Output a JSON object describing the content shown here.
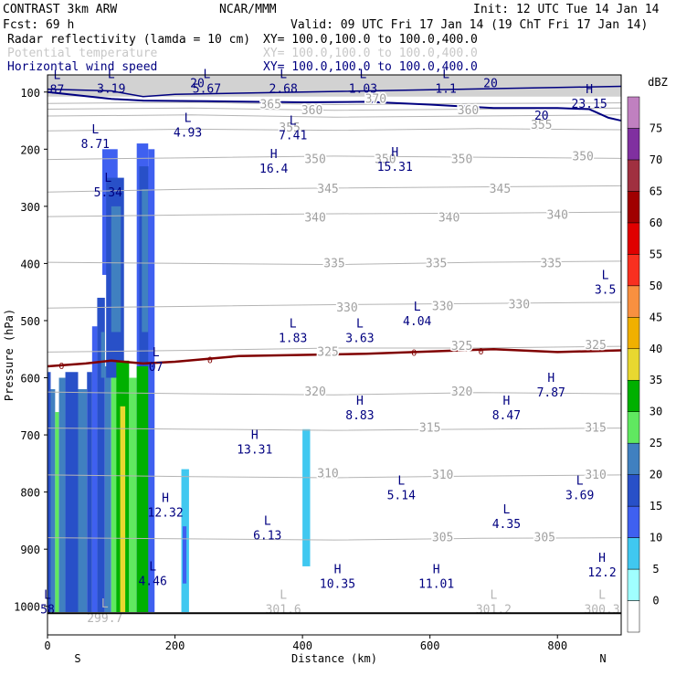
{
  "header": {
    "model": "CONTRAST  3km ARW",
    "org": "NCAR/MMM",
    "init": "Init: 12 UTC Tue 14 Jan 14",
    "fcst": "Fcst:   69 h",
    "valid": "Valid: 09 UTC Fri 17 Jan 14 (19 ChT Fri 17 Jan 14)",
    "fields": [
      {
        "name": "Radar reflectivity (lamda = 10 cm)",
        "xy": "XY= 100.0,100.0 to 100.0,400.0",
        "color": "#000000"
      },
      {
        "name": "Potential temperature",
        "xy": "XY= 100.0,100.0 to 100.0,400.0",
        "color": "#c8c8c8"
      },
      {
        "name": "Horizontal wind speed",
        "xy": "XY= 100.0,100.0 to 100.0,400.0",
        "color": "#000080"
      }
    ]
  },
  "chart_data": {
    "type": "cross-section",
    "xlabel": "Distance (km)",
    "ylabel": "Pressure (hPa)",
    "xlim": [
      0,
      900
    ],
    "ylim": [
      1050,
      70
    ],
    "x_ticks": [
      0,
      200,
      400,
      600,
      800
    ],
    "y_ticks": [
      100,
      200,
      300,
      400,
      500,
      600,
      700,
      800,
      900,
      1000
    ],
    "x_end_labels": {
      "left": "S",
      "right": "N"
    },
    "colorbar": {
      "unit": "dBZ",
      "levels": [
        0,
        5,
        10,
        15,
        20,
        25,
        30,
        35,
        40,
        45,
        50,
        55,
        60,
        65,
        70,
        75
      ],
      "colors": [
        "#ffffff",
        "#a0ffff",
        "#40c8f0",
        "#3f60f0",
        "#2850c8",
        "#4080c0",
        "#60e860",
        "#00b000",
        "#e8d830",
        "#f0b000",
        "#f89040",
        "#f83020",
        "#e00000",
        "#a00000",
        "#a03040",
        "#8030a0",
        "#c080c0"
      ]
    },
    "theta_lines": [
      {
        "value": 370,
        "p": [
          120,
          118,
          122,
          120,
          119
        ]
      },
      {
        "value": 365,
        "p": [
          130,
          128,
          132,
          130,
          128
        ]
      },
      {
        "value": 360,
        "p": [
          142,
          140,
          144,
          142,
          140
        ]
      },
      {
        "value": 355,
        "p": [
          168,
          165,
          167,
          164,
          166
        ]
      },
      {
        "value": 350,
        "p": [
          218,
          215,
          212,
          214,
          216
        ]
      },
      {
        "value": 345,
        "p": [
          275,
          270,
          268,
          266,
          264
        ]
      },
      {
        "value": 340,
        "p": [
          318,
          315,
          313,
          312,
          310
        ]
      },
      {
        "value": 335,
        "p": [
          398,
          400,
          402,
          398,
          396
        ]
      },
      {
        "value": 330,
        "p": [
          478,
          475,
          472,
          470,
          468
        ]
      },
      {
        "value": 325,
        "p": [
          555,
          552,
          548,
          548,
          545
        ]
      },
      {
        "value": 320,
        "p": [
          625,
          628,
          630,
          626,
          628
        ]
      },
      {
        "value": 315,
        "p": [
          688,
          690,
          692,
          690,
          688
        ]
      },
      {
        "value": 310,
        "p": [
          770,
          773,
          775,
          772,
          770
        ]
      },
      {
        "value": 305,
        "p": [
          880,
          882,
          884,
          881,
          880
        ]
      }
    ],
    "theta_labels": [
      {
        "text": "370",
        "x": 515,
        "p": 112
      },
      {
        "text": "365",
        "x": 350,
        "p": 122
      },
      {
        "text": "360",
        "x": 415,
        "p": 132
      },
      {
        "text": "360",
        "x": 660,
        "p": 132
      },
      {
        "text": "355",
        "x": 380,
        "p": 163
      },
      {
        "text": "355",
        "x": 775,
        "p": 158
      },
      {
        "text": "350",
        "x": 420,
        "p": 218
      },
      {
        "text": "350",
        "x": 530,
        "p": 218
      },
      {
        "text": "350",
        "x": 650,
        "p": 218
      },
      {
        "text": "350",
        "x": 840,
        "p": 213
      },
      {
        "text": "345",
        "x": 440,
        "p": 270
      },
      {
        "text": "345",
        "x": 710,
        "p": 270
      },
      {
        "text": "340",
        "x": 420,
        "p": 320
      },
      {
        "text": "340",
        "x": 630,
        "p": 320
      },
      {
        "text": "340",
        "x": 800,
        "p": 315
      },
      {
        "text": "335",
        "x": 450,
        "p": 400
      },
      {
        "text": "335",
        "x": 610,
        "p": 400
      },
      {
        "text": "335",
        "x": 790,
        "p": 400
      },
      {
        "text": "330",
        "x": 470,
        "p": 478
      },
      {
        "text": "330",
        "x": 620,
        "p": 475
      },
      {
        "text": "330",
        "x": 740,
        "p": 472
      },
      {
        "text": "325",
        "x": 440,
        "p": 555
      },
      {
        "text": "325",
        "x": 650,
        "p": 545
      },
      {
        "text": "325",
        "x": 860,
        "p": 543
      },
      {
        "text": "320",
        "x": 420,
        "p": 625
      },
      {
        "text": "320",
        "x": 650,
        "p": 625
      },
      {
        "text": "315",
        "x": 600,
        "p": 688
      },
      {
        "text": "315",
        "x": 860,
        "p": 688
      },
      {
        "text": "310",
        "x": 440,
        "p": 768
      },
      {
        "text": "310",
        "x": 620,
        "p": 770
      },
      {
        "text": "310",
        "x": 860,
        "p": 770
      },
      {
        "text": "305",
        "x": 620,
        "p": 880
      },
      {
        "text": "305",
        "x": 780,
        "p": 880
      }
    ],
    "wind_20_contour": {
      "x": [
        0,
        100,
        150,
        250,
        400,
        500,
        600,
        700,
        800,
        850,
        880,
        900
      ],
      "p": [
        100,
        112,
        115,
        116,
        118,
        117,
        122,
        128,
        128,
        130,
        145,
        150
      ]
    },
    "wind_20_labels": [
      {
        "text": "20",
        "x": 235,
        "p": 85
      },
      {
        "text": "20",
        "x": 695,
        "p": 85
      },
      {
        "text": "20",
        "x": 775,
        "p": 142
      }
    ],
    "wind_10_contour": {
      "x": [
        0,
        100,
        150,
        200,
        400,
        600,
        700,
        800,
        900
      ],
      "p": [
        95,
        98,
        108,
        104,
        100,
        96,
        94,
        92,
        90
      ]
    },
    "zero_wind_line": {
      "x": [
        0,
        60,
        100,
        150,
        200,
        300,
        500,
        700,
        800,
        900
      ],
      "p": [
        580,
        575,
        570,
        575,
        572,
        562,
        558,
        550,
        555,
        552
      ],
      "marks": [
        {
          "text": "0",
          "x": 22,
          "p": 578
        },
        {
          "text": "0",
          "x": 255,
          "p": 568
        },
        {
          "text": "0",
          "x": 575,
          "p": 555
        },
        {
          "text": "0",
          "x": 680,
          "p": 553
        }
      ]
    },
    "wind_extrema": [
      {
        "type": "L",
        "value": "87",
        "x": 15,
        "p": 90
      },
      {
        "type": "L",
        "value": "3.19",
        "x": 100,
        "p": 88
      },
      {
        "type": "L",
        "value": "5.67",
        "x": 250,
        "p": 88
      },
      {
        "type": "L",
        "value": "2.68",
        "x": 370,
        "p": 88
      },
      {
        "type": "L",
        "value": "1.03",
        "x": 495,
        "p": 88
      },
      {
        "type": "L",
        "value": "1.1",
        "x": 625,
        "p": 88
      },
      {
        "type": "H",
        "value": "23.15",
        "x": 850,
        "p": 115
      },
      {
        "type": "L",
        "value": "4.93",
        "x": 220,
        "p": 165
      },
      {
        "type": "L",
        "value": "7.41",
        "x": 385,
        "p": 170
      },
      {
        "type": "L",
        "value": "8.71",
        "x": 75,
        "p": 185
      },
      {
        "type": "H",
        "value": "16.4",
        "x": 355,
        "p": 228
      },
      {
        "type": "H",
        "value": "15.31",
        "x": 545,
        "p": 225
      },
      {
        "type": "L",
        "value": "5.34",
        "x": 95,
        "p": 270
      },
      {
        "type": "L",
        "value": "3.5",
        "x": 875,
        "p": 440
      },
      {
        "type": "L",
        "value": "4.04",
        "x": 580,
        "p": 495
      },
      {
        "type": "L",
        "value": "1.83",
        "x": 385,
        "p": 525
      },
      {
        "type": "L",
        "value": "3.63",
        "x": 490,
        "p": 525
      },
      {
        "type": "L",
        "value": "07",
        "x": 170,
        "p": 575
      },
      {
        "type": "H",
        "value": "7.87",
        "x": 790,
        "p": 620
      },
      {
        "type": "H",
        "value": "8.83",
        "x": 490,
        "p": 660
      },
      {
        "type": "H",
        "value": "8.47",
        "x": 720,
        "p": 660
      },
      {
        "type": "H",
        "value": "13.31",
        "x": 325,
        "p": 720
      },
      {
        "type": "L",
        "value": "5.14",
        "x": 555,
        "p": 800
      },
      {
        "type": "L",
        "value": "3.69",
        "x": 835,
        "p": 800
      },
      {
        "type": "H",
        "value": "12.32",
        "x": 185,
        "p": 830
      },
      {
        "type": "L",
        "value": "4.35",
        "x": 720,
        "p": 850
      },
      {
        "type": "L",
        "value": "6.13",
        "x": 345,
        "p": 870
      },
      {
        "type": "L",
        "value": "4.46",
        "x": 165,
        "p": 950
      },
      {
        "type": "H",
        "value": "10.35",
        "x": 455,
        "p": 955
      },
      {
        "type": "H",
        "value": "11.01",
        "x": 610,
        "p": 955
      },
      {
        "type": "H",
        "value": "12.2",
        "x": 870,
        "p": 935
      },
      {
        "type": "L",
        "value": "58",
        "x": 0,
        "p": 1000
      }
    ],
    "theta_extrema": [
      {
        "type": "L",
        "value": "299.7",
        "x": 90,
        "p": 1015
      },
      {
        "type": "L",
        "value": "301.6",
        "x": 370,
        "p": 1000
      },
      {
        "type": "L",
        "value": "301.2",
        "x": 700,
        "p": 1000
      },
      {
        "type": "L",
        "value": "300.3",
        "x": 870,
        "p": 1000
      }
    ],
    "reflectivity_cells": [
      {
        "x0": 0,
        "x1": 5,
        "p_top": 590,
        "p_bot": 1010,
        "dbz": 15
      },
      {
        "x0": 5,
        "x1": 12,
        "p_top": 620,
        "p_bot": 1010,
        "dbz": 20
      },
      {
        "x0": 12,
        "x1": 18,
        "p_top": 660,
        "p_bot": 1010,
        "dbz": 25
      },
      {
        "x0": 18,
        "x1": 28,
        "p_top": 600,
        "p_bot": 1010,
        "dbz": 20
      },
      {
        "x0": 28,
        "x1": 48,
        "p_top": 590,
        "p_bot": 1010,
        "dbz": 15
      },
      {
        "x0": 48,
        "x1": 62,
        "p_top": 620,
        "p_bot": 1010,
        "dbz": 20
      },
      {
        "x0": 62,
        "x1": 70,
        "p_top": 590,
        "p_bot": 1010,
        "dbz": 15
      },
      {
        "x0": 70,
        "x1": 78,
        "p_top": 510,
        "p_bot": 1010,
        "dbz": 10
      },
      {
        "x0": 78,
        "x1": 90,
        "p_top": 460,
        "p_bot": 1010,
        "dbz": 15
      },
      {
        "x0": 84,
        "x1": 90,
        "p_top": 520,
        "p_bot": 600,
        "dbz": 20
      },
      {
        "x0": 90,
        "x1": 100,
        "p_top": 580,
        "p_bot": 1010,
        "dbz": 20
      },
      {
        "x0": 86,
        "x1": 110,
        "p_top": 200,
        "p_bot": 420,
        "dbz": 10
      },
      {
        "x0": 92,
        "x1": 120,
        "p_top": 250,
        "p_bot": 600,
        "dbz": 15
      },
      {
        "x0": 100,
        "x1": 115,
        "p_top": 300,
        "p_bot": 520,
        "dbz": 20
      },
      {
        "x0": 100,
        "x1": 110,
        "p_top": 600,
        "p_bot": 1010,
        "dbz": 25
      },
      {
        "x0": 108,
        "x1": 128,
        "p_top": 570,
        "p_bot": 1010,
        "dbz": 30
      },
      {
        "x0": 114,
        "x1": 122,
        "p_top": 650,
        "p_bot": 1010,
        "dbz": 35
      },
      {
        "x0": 128,
        "x1": 140,
        "p_top": 600,
        "p_bot": 1010,
        "dbz": 25
      },
      {
        "x0": 140,
        "x1": 158,
        "p_top": 190,
        "p_bot": 1010,
        "dbz": 10
      },
      {
        "x0": 144,
        "x1": 162,
        "p_top": 230,
        "p_bot": 1010,
        "dbz": 15
      },
      {
        "x0": 148,
        "x1": 158,
        "p_top": 270,
        "p_bot": 520,
        "dbz": 20
      },
      {
        "x0": 140,
        "x1": 160,
        "p_top": 580,
        "p_bot": 1010,
        "dbz": 30
      },
      {
        "x0": 158,
        "x1": 168,
        "p_top": 200,
        "p_bot": 1010,
        "dbz": 10
      },
      {
        "x0": 210,
        "x1": 222,
        "p_top": 760,
        "p_bot": 1010,
        "dbz": 5
      },
      {
        "x0": 212,
        "x1": 218,
        "p_top": 860,
        "p_bot": 960,
        "dbz": 10
      },
      {
        "x0": 400,
        "x1": 412,
        "p_top": 690,
        "p_bot": 930,
        "dbz": 5
      }
    ]
  }
}
